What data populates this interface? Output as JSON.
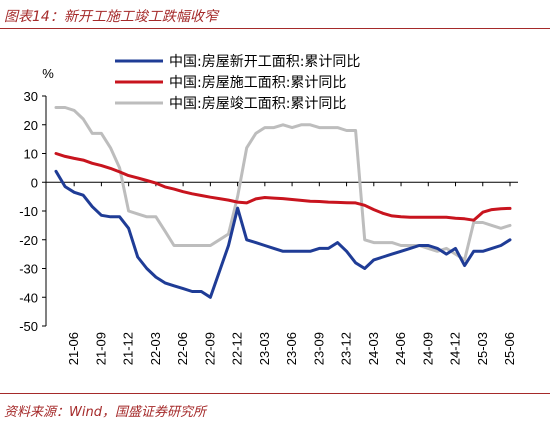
{
  "figure": {
    "title": "图表14：新开工施工竣工跌幅收窄",
    "source": "资料来源：Wind，国盛证券研究所"
  },
  "chart_data": {
    "type": "line",
    "unit_label": "%",
    "ylim": [
      -50,
      30
    ],
    "yticks": [
      30,
      20,
      10,
      0,
      -10,
      -20,
      -30,
      -40,
      -50
    ],
    "x_tick_labels": [
      "21-06",
      "21-09",
      "21-12",
      "22-03",
      "22-06",
      "22-09",
      "22-12",
      "23-03",
      "23-06",
      "23-09",
      "23-12",
      "24-03",
      "24-06",
      "24-09",
      "24-12",
      "25-03",
      "25-06"
    ],
    "x_months": [
      "21-04",
      "21-05",
      "21-06",
      "21-07",
      "21-08",
      "21-09",
      "21-10",
      "21-11",
      "21-12",
      "22-01",
      "22-02",
      "22-03",
      "22-04",
      "22-05",
      "22-06",
      "22-07",
      "22-08",
      "22-09",
      "22-10",
      "22-11",
      "22-12",
      "23-01",
      "23-02",
      "23-03",
      "23-04",
      "23-05",
      "23-06",
      "23-07",
      "23-08",
      "23-09",
      "23-10",
      "23-11",
      "23-12",
      "24-01",
      "24-02",
      "24-03",
      "24-04",
      "24-05",
      "24-06",
      "24-07",
      "24-08",
      "24-09",
      "24-10",
      "24-11",
      "24-12",
      "25-01",
      "25-02",
      "25-03",
      "25-04",
      "25-05",
      "25-06"
    ],
    "legend_position": "top",
    "grid": false,
    "series": [
      {
        "name": "中国:房屋新开工面积:累计同比",
        "color": "#1f3c96",
        "values": [
          3.8,
          -1.5,
          -3.5,
          -4.5,
          -8.5,
          -11.5,
          -12,
          -12,
          -16,
          -26,
          -30,
          -33,
          -35,
          -36,
          -37,
          -38,
          -38,
          -40,
          null,
          -22,
          -9,
          -20,
          -21,
          -22,
          -23,
          -24,
          -24,
          -24,
          -24,
          -23,
          -23,
          -21,
          -24,
          -28,
          -30,
          -27,
          -26,
          -25,
          -24,
          -23,
          -22,
          -22,
          -23,
          -25,
          -23,
          -29,
          -24,
          -24,
          -23,
          -22,
          -20
        ]
      },
      {
        "name": "中国:房屋施工面积:累计同比",
        "color": "#c8141e",
        "values": [
          10,
          9,
          8.3,
          7.7,
          6.6,
          5.8,
          4.8,
          3.6,
          2.3,
          1.5,
          0.6,
          -0.3,
          -1.6,
          -2.4,
          -3.3,
          -4,
          -4.6,
          -5.2,
          -5.7,
          -6.2,
          -6.9,
          -7.2,
          -5.8,
          -5.3,
          -5.5,
          -5.7,
          -6,
          -6.3,
          -6.6,
          -6.7,
          -6.9,
          -7,
          -7.1,
          -7.2,
          -8,
          -9.5,
          -10.8,
          -11.7,
          -12,
          -12.2,
          -12.2,
          -12.2,
          -12.2,
          -12.2,
          -12.5,
          -12.7,
          -13.2,
          -10.4,
          -9.5,
          -9.2,
          -9.1
        ]
      },
      {
        "name": "中国:房屋竣工面积:累计同比",
        "color": "#bdbdbd",
        "values": [
          26,
          26,
          25,
          22,
          17,
          17,
          12,
          5,
          -10,
          -11,
          -12,
          -12,
          -17,
          -22,
          -22,
          -22,
          -22,
          -22,
          -20,
          -18,
          -5,
          12,
          17,
          19,
          19,
          20,
          19,
          20,
          20,
          19,
          19,
          19,
          18,
          18,
          -20,
          -21,
          -21,
          -21,
          -22,
          -22,
          -22,
          -23,
          -24,
          -23,
          -25,
          -27,
          -14,
          -14,
          -15,
          -16,
          -15
        ]
      }
    ]
  }
}
